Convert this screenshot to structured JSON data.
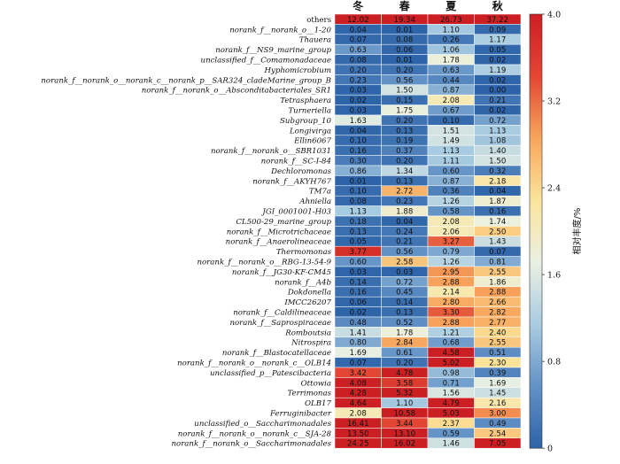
{
  "chart_data": {
    "type": "heatmap",
    "title": "",
    "columns": [
      "冬",
      "春",
      "夏",
      "秋"
    ],
    "rows": [
      {
        "label": "others",
        "italic": false,
        "values": [
          12.02,
          19.34,
          26.73,
          37.22
        ]
      },
      {
        "label": "norank_f__norank_o__1-20",
        "italic": true,
        "values": [
          0.04,
          0.01,
          1.1,
          0.09
        ]
      },
      {
        "label": "Thauera",
        "italic": true,
        "values": [
          0.07,
          0.08,
          0.26,
          1.17
        ]
      },
      {
        "label": "norank_f__NS9_marine_group",
        "italic": true,
        "values": [
          0.63,
          0.06,
          1.06,
          0.05
        ]
      },
      {
        "label": "unclassified_f__Comamonadaceae",
        "italic": true,
        "values": [
          0.08,
          0.01,
          1.78,
          0.02
        ]
      },
      {
        "label": "Hyphomicrobium",
        "italic": true,
        "values": [
          0.2,
          0.2,
          0.63,
          1.19
        ]
      },
      {
        "label": "norank_f__norank_o__norank_c__norank_p__SAR324_cladeMarine_group_B",
        "italic": true,
        "values": [
          0.23,
          0.56,
          0.44,
          0.02
        ]
      },
      {
        "label": "norank_f__norank_o__Absconditabacteriales_SR1",
        "italic": true,
        "values": [
          0.03,
          1.5,
          0.87,
          0.0
        ]
      },
      {
        "label": "Tetrasphaera",
        "italic": true,
        "values": [
          0.02,
          0.15,
          2.08,
          0.21
        ]
      },
      {
        "label": "Turneriella",
        "italic": true,
        "values": [
          0.03,
          1.75,
          0.67,
          0.02
        ]
      },
      {
        "label": "Subgroup_10",
        "italic": true,
        "values": [
          1.63,
          0.2,
          0.1,
          0.72
        ]
      },
      {
        "label": "Longivirga",
        "italic": true,
        "values": [
          0.04,
          0.13,
          1.51,
          1.13
        ]
      },
      {
        "label": "Ellin6067",
        "italic": true,
        "values": [
          0.1,
          0.19,
          1.49,
          1.08
        ]
      },
      {
        "label": "norank_f__norank_o__SBR1031",
        "italic": true,
        "values": [
          0.16,
          0.37,
          1.13,
          1.4
        ]
      },
      {
        "label": "norank_f__SC-I-84",
        "italic": true,
        "values": [
          0.3,
          0.2,
          1.11,
          1.5
        ]
      },
      {
        "label": "Dechloromonas",
        "italic": true,
        "values": [
          0.86,
          1.34,
          0.6,
          0.32
        ]
      },
      {
        "label": "norank_f__AKYH767",
        "italic": true,
        "values": [
          0.01,
          0.13,
          0.87,
          2.18
        ]
      },
      {
        "label": "TM7a",
        "italic": true,
        "values": [
          0.1,
          2.72,
          0.36,
          0.04
        ]
      },
      {
        "label": "Ahniella",
        "italic": true,
        "values": [
          0.08,
          0.23,
          1.26,
          1.87
        ]
      },
      {
        "label": "JGI_0001001-H03",
        "italic": true,
        "values": [
          1.13,
          1.88,
          0.58,
          0.16
        ]
      },
      {
        "label": "CL500-29_marine_group",
        "italic": true,
        "values": [
          0.18,
          0.04,
          2.08,
          1.74
        ]
      },
      {
        "label": "norank_f__Microtrichaceae",
        "italic": true,
        "values": [
          0.13,
          0.24,
          2.06,
          2.5
        ]
      },
      {
        "label": "norank_f__Anaerolineaceae",
        "italic": true,
        "values": [
          0.05,
          0.21,
          3.27,
          1.43
        ]
      },
      {
        "label": "Thermomonas",
        "italic": true,
        "values": [
          3.77,
          0.56,
          0.79,
          0.07
        ]
      },
      {
        "label": "norank_f__norank_o__RBG-13-54-9",
        "italic": true,
        "values": [
          0.6,
          2.58,
          1.26,
          0.81
        ]
      },
      {
        "label": "norank_f__JG30-KF-CM45",
        "italic": true,
        "values": [
          0.03,
          0.03,
          2.95,
          2.55
        ]
      },
      {
        "label": "norank_f__A4b",
        "italic": true,
        "values": [
          0.14,
          0.72,
          2.88,
          1.86
        ]
      },
      {
        "label": "Dokdonella",
        "italic": true,
        "values": [
          0.16,
          0.45,
          2.14,
          2.88
        ]
      },
      {
        "label": "IMCC26207",
        "italic": true,
        "values": [
          0.06,
          0.14,
          2.8,
          2.66
        ]
      },
      {
        "label": "norank_f__Caldilineaceae",
        "italic": true,
        "values": [
          0.02,
          0.13,
          3.3,
          2.82
        ]
      },
      {
        "label": "norank_f__Saprospiraceae",
        "italic": true,
        "values": [
          0.48,
          0.52,
          2.88,
          2.77
        ]
      },
      {
        "label": "Romboutsia",
        "italic": true,
        "values": [
          1.41,
          1.78,
          1.21,
          2.4
        ]
      },
      {
        "label": "Nitrospira",
        "italic": true,
        "values": [
          0.8,
          2.84,
          0.68,
          2.55
        ]
      },
      {
        "label": "norank_f__Blastocatellaceae",
        "italic": true,
        "values": [
          1.69,
          0.61,
          4.58,
          0.51
        ]
      },
      {
        "label": "norank_f__norank_o__norank_c__OLB14",
        "italic": true,
        "values": [
          0.07,
          0.2,
          5.02,
          2.3
        ]
      },
      {
        "label": "unclassified_p__Patescibacteria",
        "italic": true,
        "values": [
          3.42,
          4.78,
          0.98,
          0.39
        ]
      },
      {
        "label": "Ottowia",
        "italic": true,
        "values": [
          4.08,
          3.58,
          0.71,
          1.69
        ]
      },
      {
        "label": "Terrimonas",
        "italic": true,
        "values": [
          4.28,
          5.32,
          1.56,
          1.45
        ]
      },
      {
        "label": "OLB17",
        "italic": true,
        "values": [
          4.64,
          1.1,
          4.79,
          2.16
        ]
      },
      {
        "label": "Ferruginibacter",
        "italic": true,
        "values": [
          2.08,
          10.58,
          5.03,
          3.0
        ]
      },
      {
        "label": "unclassified_o__Saccharimonadales",
        "italic": true,
        "values": [
          16.41,
          3.44,
          2.37,
          0.49
        ]
      },
      {
        "label": "norank_f__norank_o__norank_c__SJA-28",
        "italic": true,
        "values": [
          13.5,
          13.1,
          0.59,
          2.54
        ]
      },
      {
        "label": "norank_f__norank_o__Saccharimonadales",
        "italic": true,
        "values": [
          24.25,
          16.02,
          1.46,
          7.05
        ]
      }
    ],
    "colorbar": {
      "label": "相对丰度/%",
      "range": [
        0,
        4.0
      ],
      "ticks": [
        "0",
        "0.8",
        "1.6",
        "2.4",
        "3.2",
        "4.0"
      ],
      "colors": [
        "#2c63a8",
        "#6392c6",
        "#a9cce1",
        "#eaf0e2",
        "#fbe59b",
        "#f8a55c",
        "#e24634",
        "#cc1f23"
      ]
    }
  }
}
